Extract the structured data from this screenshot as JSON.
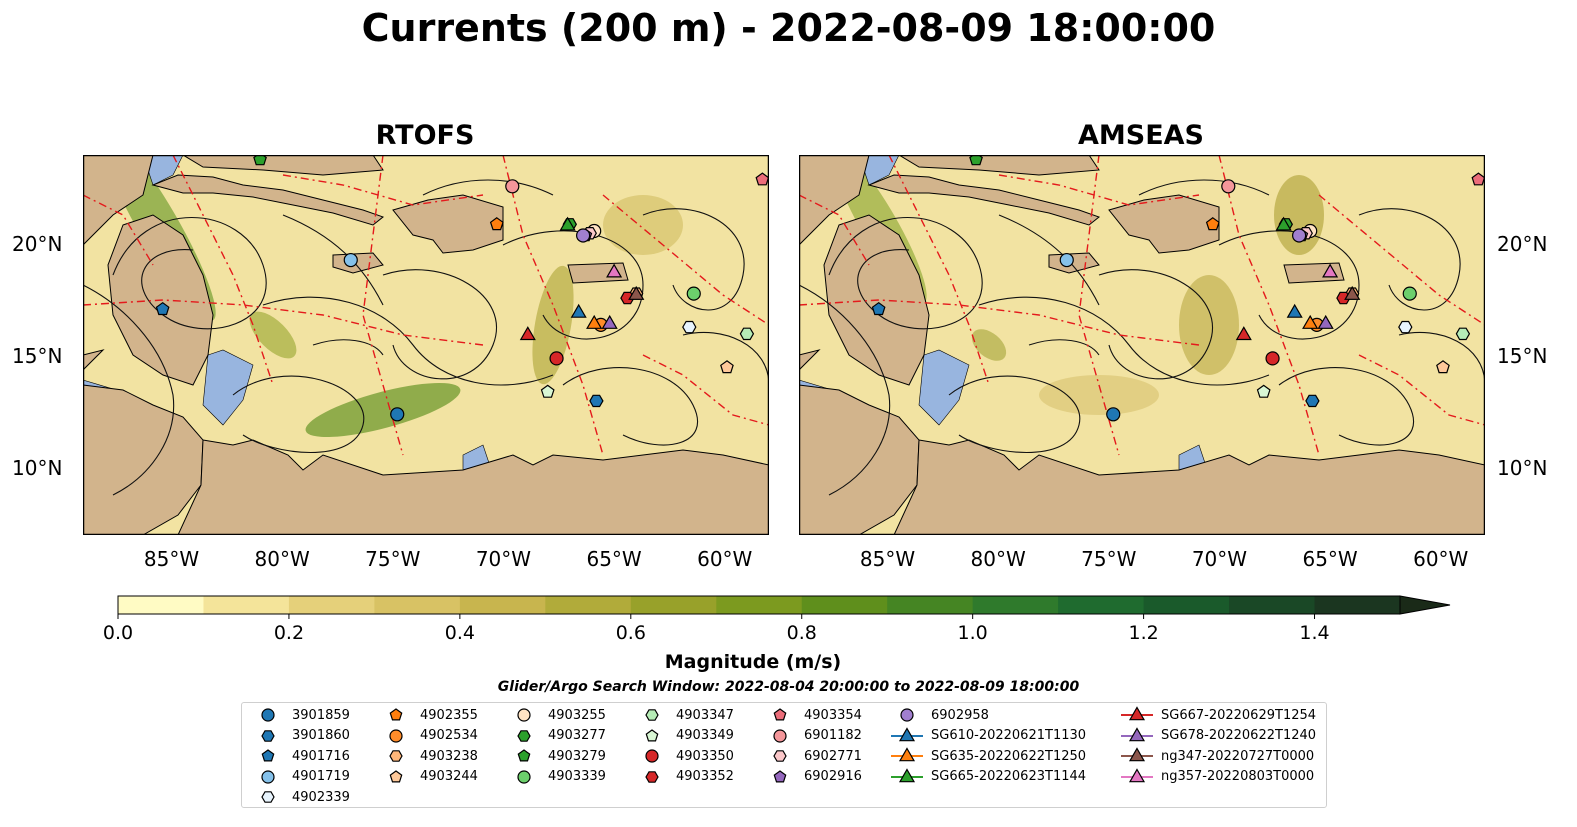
{
  "title": "Currents (200 m) - 2022-08-09 18:00:00",
  "chart_data": [
    {
      "type": "heatmap",
      "title": "RTOFS",
      "x_ticks": [
        "85°W",
        "80°W",
        "75°W",
        "70°W",
        "65°W",
        "60°W"
      ],
      "x_values": [
        -85,
        -80,
        -75,
        -70,
        -65,
        -60
      ],
      "y_ticks": [
        "20°N",
        "15°N",
        "10°N"
      ],
      "y_values": [
        20,
        15,
        10
      ],
      "xlim": [
        -89,
        -58
      ],
      "ylim": [
        7,
        24
      ],
      "points": [
        {
          "name": "3901859",
          "lon": -74.8,
          "lat": 12.4
        },
        {
          "name": "3901860",
          "lon": -65.8,
          "lat": 13.0
        },
        {
          "name": "4901716",
          "lon": -85.4,
          "lat": 17.1
        },
        {
          "name": "4901719",
          "lon": -76.9,
          "lat": 19.3
        },
        {
          "name": "4902339",
          "lon": -61.6,
          "lat": 16.3
        },
        {
          "name": "4902355",
          "lon": -70.3,
          "lat": 20.9
        },
        {
          "name": "4902534",
          "lon": -65.6,
          "lat": 16.4
        },
        {
          "name": "4903238",
          "lon": -64.0,
          "lat": 17.8
        },
        {
          "name": "4903244",
          "lon": -59.9,
          "lat": 14.5
        },
        {
          "name": "4903255",
          "lon": -65.9,
          "lat": 20.6
        },
        {
          "name": "4903277",
          "lon": -67.0,
          "lat": 20.9
        },
        {
          "name": "4903279",
          "lon": -81.0,
          "lat": 23.8
        },
        {
          "name": "4903339",
          "lon": -61.4,
          "lat": 17.8
        },
        {
          "name": "4903347",
          "lon": -59.0,
          "lat": 16.0
        },
        {
          "name": "4903349",
          "lon": -68.0,
          "lat": 13.4
        },
        {
          "name": "4903350",
          "lon": -67.6,
          "lat": 14.9
        },
        {
          "name": "4903352",
          "lon": -64.4,
          "lat": 17.6
        },
        {
          "name": "4903354",
          "lon": -58.3,
          "lat": 22.9
        },
        {
          "name": "6901182",
          "lon": -69.6,
          "lat": 22.6
        },
        {
          "name": "6902771",
          "lon": -66.1,
          "lat": 20.5
        },
        {
          "name": "6902916",
          "lon": -66.3,
          "lat": 20.4
        },
        {
          "name": "6902958",
          "lon": -66.4,
          "lat": 20.4
        },
        {
          "name": "SG610-20220621T1130",
          "lon": -66.6,
          "lat": 17.0
        },
        {
          "name": "SG635-20220622T1250",
          "lon": -65.9,
          "lat": 16.5
        },
        {
          "name": "SG665-20220623T1144",
          "lon": -67.1,
          "lat": 20.9
        },
        {
          "name": "SG667-20220629T1254",
          "lon": -68.9,
          "lat": 16.0
        },
        {
          "name": "SG678-20220622T1240",
          "lon": -65.2,
          "lat": 16.5
        },
        {
          "name": "ng347-20220727T0000",
          "lon": -64.0,
          "lat": 17.8
        },
        {
          "name": "ng357-20220803T0000",
          "lon": -65.0,
          "lat": 18.8
        }
      ]
    },
    {
      "type": "heatmap",
      "title": "AMSEAS",
      "x_ticks": [
        "85°W",
        "80°W",
        "75°W",
        "70°W",
        "65°W",
        "60°W"
      ],
      "x_values": [
        -85,
        -80,
        -75,
        -70,
        -65,
        -60
      ],
      "y_ticks": [
        "20°N",
        "15°N",
        "10°N"
      ],
      "y_values": [
        20,
        15,
        10
      ],
      "xlim": [
        -89,
        -58
      ],
      "ylim": [
        7,
        24
      ],
      "points": [
        {
          "name": "3901859",
          "lon": -74.8,
          "lat": 12.4
        },
        {
          "name": "3901860",
          "lon": -65.8,
          "lat": 13.0
        },
        {
          "name": "4901716",
          "lon": -85.4,
          "lat": 17.1
        },
        {
          "name": "4901719",
          "lon": -76.9,
          "lat": 19.3
        },
        {
          "name": "4902339",
          "lon": -61.6,
          "lat": 16.3
        },
        {
          "name": "4902355",
          "lon": -70.3,
          "lat": 20.9
        },
        {
          "name": "4902534",
          "lon": -65.6,
          "lat": 16.4
        },
        {
          "name": "4903238",
          "lon": -64.0,
          "lat": 17.8
        },
        {
          "name": "4903244",
          "lon": -59.9,
          "lat": 14.5
        },
        {
          "name": "4903255",
          "lon": -65.9,
          "lat": 20.6
        },
        {
          "name": "4903277",
          "lon": -67.0,
          "lat": 20.9
        },
        {
          "name": "4903279",
          "lon": -81.0,
          "lat": 23.8
        },
        {
          "name": "4903339",
          "lon": -61.4,
          "lat": 17.8
        },
        {
          "name": "4903347",
          "lon": -59.0,
          "lat": 16.0
        },
        {
          "name": "4903349",
          "lon": -68.0,
          "lat": 13.4
        },
        {
          "name": "4903350",
          "lon": -67.6,
          "lat": 14.9
        },
        {
          "name": "4903352",
          "lon": -64.4,
          "lat": 17.6
        },
        {
          "name": "4903354",
          "lon": -58.3,
          "lat": 22.9
        },
        {
          "name": "6901182",
          "lon": -69.6,
          "lat": 22.6
        },
        {
          "name": "6902771",
          "lon": -66.1,
          "lat": 20.5
        },
        {
          "name": "6902916",
          "lon": -66.3,
          "lat": 20.4
        },
        {
          "name": "6902958",
          "lon": -66.4,
          "lat": 20.4
        },
        {
          "name": "SG610-20220621T1130",
          "lon": -66.6,
          "lat": 17.0
        },
        {
          "name": "SG635-20220622T1250",
          "lon": -65.9,
          "lat": 16.5
        },
        {
          "name": "SG665-20220623T1144",
          "lon": -67.1,
          "lat": 20.9
        },
        {
          "name": "SG667-20220629T1254",
          "lon": -68.9,
          "lat": 16.0
        },
        {
          "name": "SG678-20220622T1240",
          "lon": -65.2,
          "lat": 16.5
        },
        {
          "name": "ng347-20220727T0000",
          "lon": -64.0,
          "lat": 17.8
        },
        {
          "name": "ng357-20220803T0000",
          "lon": -65.0,
          "lat": 18.8
        }
      ]
    }
  ],
  "colorbar": {
    "label": "Magnitude (m/s)",
    "ticks": [
      "0.0",
      "0.2",
      "0.4",
      "0.6",
      "0.8",
      "1.0",
      "1.2",
      "1.4"
    ],
    "tick_values": [
      0.0,
      0.2,
      0.4,
      0.6,
      0.8,
      1.0,
      1.2,
      1.4
    ],
    "min": 0.0,
    "max": 1.5,
    "step": 0.1,
    "extend": "max",
    "colors": [
      "#fffbc4",
      "#f4e49a",
      "#e5d07a",
      "#d8c264",
      "#c8b54e",
      "#b1ab3a",
      "#98a12a",
      "#7c9a1f",
      "#5f8f1c",
      "#458523",
      "#2f7a2c",
      "#1f6b2f",
      "#1a5a2b",
      "#1a4826",
      "#1b3620",
      "#1a2a18"
    ]
  },
  "search_window": "Glider/Argo Search Window: 2022-08-04 20:00:00 to 2022-08-09 18:00:00",
  "legend": [
    {
      "label": "3901859",
      "marker": "circle",
      "color": "#1f77b4"
    },
    {
      "label": "3901860",
      "marker": "hexagon",
      "color": "#1f77b4"
    },
    {
      "label": "4901716",
      "marker": "pentagon",
      "color": "#1f77b4"
    },
    {
      "label": "4901719",
      "marker": "circle",
      "color": "#85c1ea"
    },
    {
      "label": "4902339",
      "marker": "hexagon",
      "color": "#e8f4fd"
    },
    {
      "label": "4902355",
      "marker": "pentagon",
      "color": "#ff7f0e"
    },
    {
      "label": "4902534",
      "marker": "circle",
      "color": "#ff8c2a"
    },
    {
      "label": "4903238",
      "marker": "hexagon",
      "color": "#ffb77a"
    },
    {
      "label": "4903244",
      "marker": "pentagon",
      "color": "#ffc99a"
    },
    {
      "label": "4903255",
      "marker": "circle",
      "color": "#ffe3c4"
    },
    {
      "label": "4903277",
      "marker": "hexagon",
      "color": "#2ca02c"
    },
    {
      "label": "4903279",
      "marker": "pentagon",
      "color": "#2ca02c"
    },
    {
      "label": "4903339",
      "marker": "circle",
      "color": "#6ccf6c"
    },
    {
      "label": "4903347",
      "marker": "hexagon",
      "color": "#b6ecb6"
    },
    {
      "label": "4903349",
      "marker": "pentagon",
      "color": "#d9f7d4"
    },
    {
      "label": "4903350",
      "marker": "circle",
      "color": "#d62728"
    },
    {
      "label": "4903352",
      "marker": "hexagon",
      "color": "#d62728"
    },
    {
      "label": "4903354",
      "marker": "pentagon",
      "color": "#ec6d7a"
    },
    {
      "label": "6901182",
      "marker": "circle",
      "color": "#f4969a"
    },
    {
      "label": "6902771",
      "marker": "hexagon",
      "color": "#fbc7c9"
    },
    {
      "label": "6902916",
      "marker": "pentagon",
      "color": "#9467bd"
    },
    {
      "label": "6902958",
      "marker": "circle",
      "color": "#a17fcf"
    },
    {
      "label": "SG610-20220621T1130",
      "marker": "triangle-line",
      "color": "#1f77b4"
    },
    {
      "label": "SG635-20220622T1250",
      "marker": "triangle-line",
      "color": "#ff7f0e"
    },
    {
      "label": "SG665-20220623T1144",
      "marker": "triangle-line",
      "color": "#2ca02c"
    },
    {
      "label": "SG667-20220629T1254",
      "marker": "triangle-line",
      "color": "#d62728"
    },
    {
      "label": "SG678-20220622T1240",
      "marker": "triangle-line",
      "color": "#9467bd"
    },
    {
      "label": "ng347-20220727T0000",
      "marker": "triangle-line",
      "color": "#8c564b"
    },
    {
      "label": "ng357-20220803T0000",
      "marker": "triangle-line",
      "color": "#e377c2"
    }
  ]
}
